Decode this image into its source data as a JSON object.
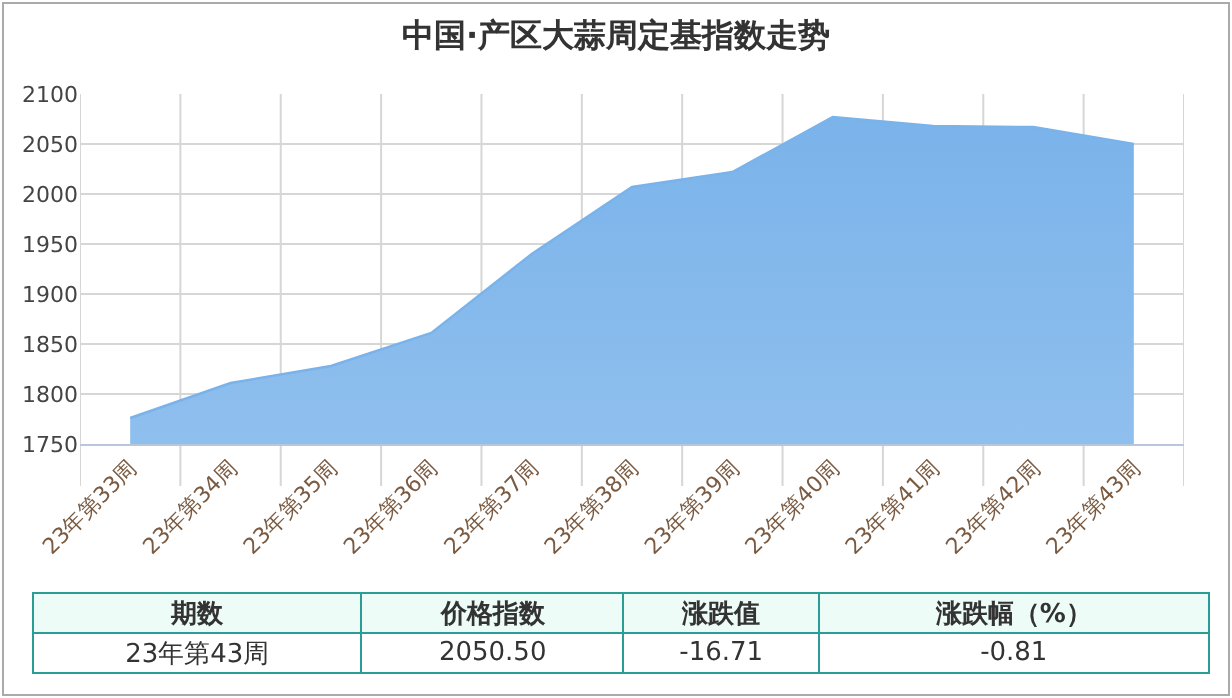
{
  "chart_data": {
    "type": "area",
    "title": "中国·产区大蒜周定基指数走势",
    "categories": [
      "23年第33周",
      "23年第34周",
      "23年第35周",
      "23年第36周",
      "23年第37周",
      "23年第38周",
      "23年第39周",
      "23年第40周",
      "23年第41周",
      "23年第42周",
      "23年第43周"
    ],
    "series": [
      {
        "color": "#7ab3ea",
        "values": [
          1776,
          1811,
          1828,
          1861,
          1940,
          2007,
          2022,
          2077,
          2068,
          2067,
          2050
        ]
      }
    ],
    "ylim": [
      1750,
      2100
    ],
    "yticks": [
      1750,
      1800,
      1850,
      1900,
      1950,
      2000,
      2050,
      2100
    ],
    "grid": true,
    "legend": false,
    "marker": "none",
    "annotations": [
      "期数",
      "价格指数",
      "涨跌值",
      "涨跌幅（%）",
      "23年第43周",
      "2050.50",
      "-16.71",
      "-0.81"
    ]
  }
}
